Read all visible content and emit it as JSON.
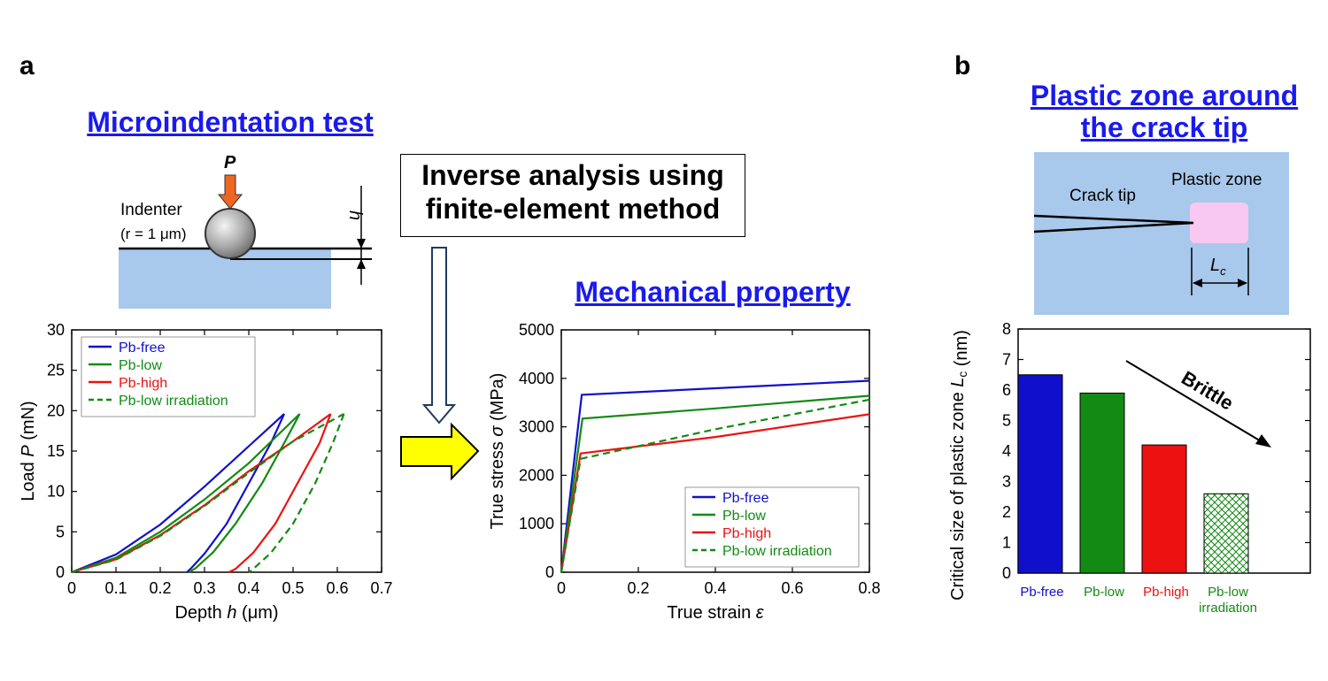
{
  "panels": {
    "a": "a",
    "b": "b"
  },
  "headings": {
    "microindentation": "Microindentation test",
    "mechanical": "Mechanical property",
    "plastic_zone_line1": "Plastic zone around",
    "plastic_zone_line2": "the crack tip"
  },
  "inverse_box": {
    "line1": "Inverse analysis using",
    "line2": "finite-element method"
  },
  "schematic_a": {
    "load_symbol": "P",
    "depth_symbol": "h",
    "indenter_label": "Indenter",
    "radius_label": "(r = 1 μm)"
  },
  "schematic_b": {
    "crack_tip_label": "Crack tip",
    "plastic_zone_label": "Plastic zone",
    "size_symbol": "L",
    "size_subscript": "c"
  },
  "colors": {
    "blue": "#1010cc",
    "green": "#138a13",
    "red": "#ee1111",
    "heading": "#1a1aee",
    "substrate": "#a8c8ec",
    "plastic_zone": "#f8c8f0",
    "arrow_fill": "#ffff00"
  },
  "chart_data": [
    {
      "type": "line",
      "title": "",
      "xlabel_text": "Depth ",
      "xlabel_symbol": "h",
      "xlabel_unit": " (μm)",
      "ylabel_text": "Load ",
      "ylabel_symbol": "P",
      "ylabel_unit": " (mN)",
      "xlim": [
        0,
        0.7
      ],
      "ylim": [
        0,
        30
      ],
      "xticks": [
        "0",
        "0.1",
        "0.2",
        "0.3",
        "0.4",
        "0.5",
        "0.6",
        "0.7"
      ],
      "yticks": [
        "0",
        "5",
        "10",
        "15",
        "20",
        "25",
        "30"
      ],
      "legend_position": "top-left",
      "series": [
        {
          "name": "Pb-free",
          "color": "#1010cc",
          "dashed": false,
          "loading": [
            [
              0,
              0
            ],
            [
              0.1,
              2.2
            ],
            [
              0.2,
              5.9
            ],
            [
              0.3,
              10.6
            ],
            [
              0.4,
              15.6
            ],
            [
              0.48,
              19.6
            ]
          ],
          "unloading": [
            [
              0.48,
              19.6
            ],
            [
              0.45,
              16
            ],
            [
              0.4,
              11
            ],
            [
              0.35,
              6
            ],
            [
              0.3,
              2.3
            ],
            [
              0.27,
              0.5
            ],
            [
              0.26,
              0
            ]
          ]
        },
        {
          "name": "Pb-low",
          "color": "#138a13",
          "dashed": false,
          "loading": [
            [
              0,
              0
            ],
            [
              0.1,
              1.8
            ],
            [
              0.2,
              5
            ],
            [
              0.3,
              9
            ],
            [
              0.4,
              13.5
            ],
            [
              0.515,
              19.6
            ]
          ],
          "unloading": [
            [
              0.515,
              19.6
            ],
            [
              0.48,
              16
            ],
            [
              0.43,
              11
            ],
            [
              0.37,
              6
            ],
            [
              0.32,
              2.5
            ],
            [
              0.28,
              0.5
            ],
            [
              0.265,
              0
            ]
          ]
        },
        {
          "name": "Pb-high",
          "color": "#ee1111",
          "dashed": false,
          "loading": [
            [
              0,
              0
            ],
            [
              0.1,
              1.6
            ],
            [
              0.2,
              4.6
            ],
            [
              0.3,
              8.3
            ],
            [
              0.4,
              12.5
            ],
            [
              0.5,
              16.2
            ],
            [
              0.585,
              19.6
            ]
          ],
          "unloading": [
            [
              0.585,
              19.6
            ],
            [
              0.56,
              16
            ],
            [
              0.51,
              11
            ],
            [
              0.46,
              6
            ],
            [
              0.41,
              2.4
            ],
            [
              0.37,
              0.4
            ],
            [
              0.355,
              0
            ]
          ]
        },
        {
          "name": "Pb-low irradiation",
          "color": "#138a13",
          "dashed": true,
          "loading": [
            [
              0,
              0
            ],
            [
              0.1,
              1.55
            ],
            [
              0.2,
              4.5
            ],
            [
              0.3,
              8.2
            ],
            [
              0.4,
              12.3
            ],
            [
              0.5,
              16.2
            ],
            [
              0.615,
              19.6
            ]
          ],
          "unloading": [
            [
              0.615,
              19.6
            ],
            [
              0.59,
              16
            ],
            [
              0.55,
              11
            ],
            [
              0.5,
              6
            ],
            [
              0.45,
              2.4
            ],
            [
              0.41,
              0.4
            ],
            [
              0.4,
              0
            ]
          ]
        }
      ]
    },
    {
      "type": "line",
      "title": "",
      "xlabel_text": "True strain ",
      "xlabel_symbol": "ε",
      "xlabel_unit": "",
      "ylabel_text": "True stress ",
      "ylabel_symbol": "σ",
      "ylabel_unit": " (MPa)",
      "xlim": [
        0,
        0.8
      ],
      "ylim": [
        0,
        5000
      ],
      "xticks": [
        "0",
        "0.2",
        "0.4",
        "0.6",
        "0.8"
      ],
      "yticks": [
        "0",
        "1000",
        "2000",
        "3000",
        "4000",
        "5000"
      ],
      "legend_position": "bottom-right",
      "series": [
        {
          "name": "Pb-free",
          "color": "#1010cc",
          "dashed": false,
          "points": [
            [
              0,
              0
            ],
            [
              0.053,
              3660
            ],
            [
              0.8,
              3950
            ]
          ]
        },
        {
          "name": "Pb-low",
          "color": "#138a13",
          "dashed": false,
          "points": [
            [
              0,
              0
            ],
            [
              0.055,
              3170
            ],
            [
              0.4,
              3380
            ],
            [
              0.8,
              3640
            ]
          ]
        },
        {
          "name": "Pb-high",
          "color": "#ee1111",
          "dashed": false,
          "points": [
            [
              0,
              0
            ],
            [
              0.05,
              2450
            ],
            [
              0.4,
              2790
            ],
            [
              0.8,
              3260
            ]
          ]
        },
        {
          "name": "Pb-low irradiation",
          "color": "#138a13",
          "dashed": true,
          "points": [
            [
              0,
              0
            ],
            [
              0.05,
              2340
            ],
            [
              0.4,
              2950
            ],
            [
              0.8,
              3560
            ]
          ]
        }
      ]
    },
    {
      "type": "bar",
      "title": "",
      "ylabel_text": "Critical size of plastic zone ",
      "ylabel_symbol": "L",
      "ylabel_sub": "c",
      "ylabel_unit": " (nm)",
      "ylim": [
        0,
        8
      ],
      "yticks": [
        "0",
        "1",
        "2",
        "3",
        "4",
        "5",
        "6",
        "7",
        "8"
      ],
      "categories": [
        "Pb-free",
        "Pb-low",
        "Pb-high",
        "Pb-low irradiation"
      ],
      "category_lines": [
        [
          "Pb-free"
        ],
        [
          "Pb-low"
        ],
        [
          "Pb-high"
        ],
        [
          "Pb-low",
          "irradiation"
        ]
      ],
      "values": [
        6.5,
        5.9,
        4.2,
        2.6
      ],
      "colors": [
        "#1010cc",
        "#138a13",
        "#ee1111",
        "#138a13"
      ],
      "hatched": [
        false,
        false,
        false,
        true
      ],
      "annotation": "Brittle"
    }
  ]
}
